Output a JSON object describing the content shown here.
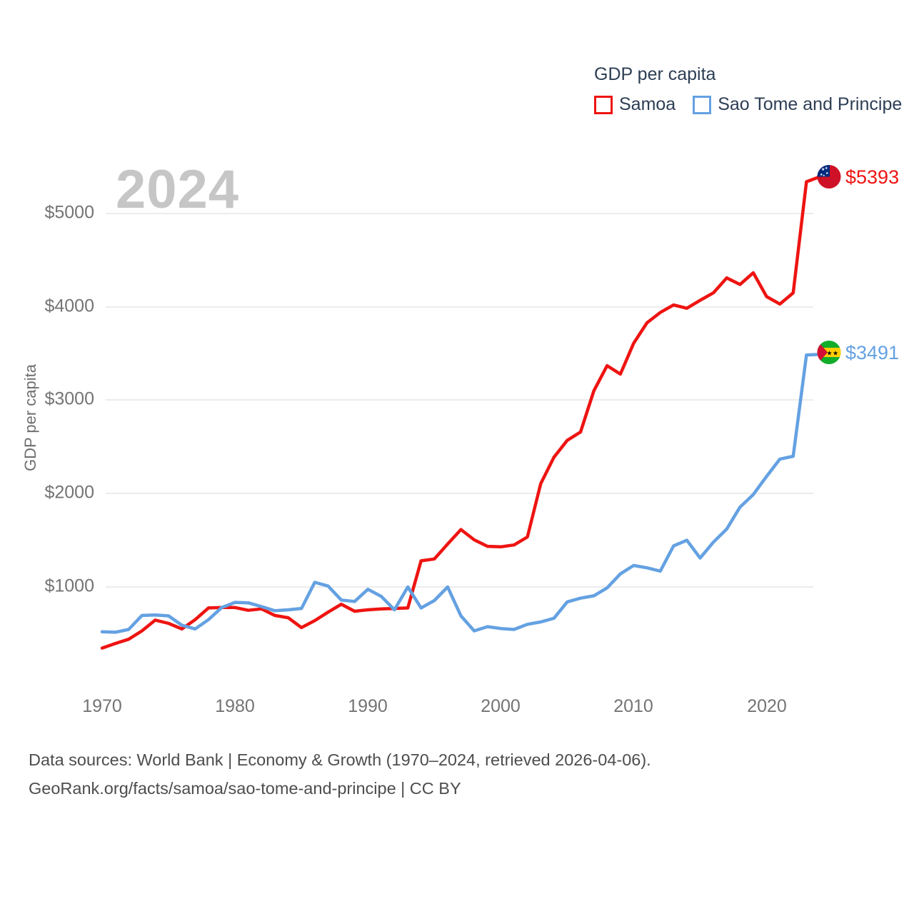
{
  "watermark": "2024",
  "legend": {
    "title": "GDP per capita",
    "items": [
      {
        "label": "Samoa",
        "color": "#ee1411"
      },
      {
        "label": "Sao Tome and Principe",
        "color": "#64a1e2"
      }
    ]
  },
  "y_axis": {
    "title": "GDP per capita",
    "ticks": [
      "$5000",
      "$4000",
      "$3000",
      "$2000",
      "$1000"
    ]
  },
  "x_axis": {
    "ticks": [
      "1970",
      "1980",
      "1990",
      "2000",
      "2010",
      "2020"
    ]
  },
  "end_labels": [
    {
      "text": "$5393",
      "color": "#ee1411",
      "flag": "samoa-flag"
    },
    {
      "text": "$3491",
      "color": "#64a1e2",
      "flag": "sao-tome-and-principe-flag"
    }
  ],
  "source": {
    "line1": "Data sources: World Bank | Economy & Growth (1970–2024, retrieved 2026-04-06).",
    "line2": "GeoRank.org/facts/samoa/sao-tome-and-principe | CC BY"
  },
  "chart_data": {
    "type": "line",
    "title": "GDP per capita",
    "ylabel": "GDP per capita",
    "xlabel": "",
    "ylim": [
      0,
      5600
    ],
    "xlim": [
      1970,
      2024
    ],
    "grid": "horizontal",
    "legend_position": "top-right",
    "x": [
      1970,
      1971,
      1972,
      1973,
      1974,
      1975,
      1976,
      1977,
      1978,
      1979,
      1980,
      1981,
      1982,
      1983,
      1984,
      1985,
      1986,
      1987,
      1988,
      1989,
      1990,
      1991,
      1992,
      1993,
      1994,
      1995,
      1996,
      1997,
      1998,
      1999,
      2000,
      2001,
      2002,
      2003,
      2004,
      2005,
      2006,
      2007,
      2008,
      2009,
      2010,
      2011,
      2012,
      2013,
      2014,
      2015,
      2016,
      2017,
      2018,
      2019,
      2020,
      2021,
      2022,
      2023,
      2024
    ],
    "series": [
      {
        "id": "samoa",
        "name": "Samoa",
        "color": "#ee1411",
        "final_value": 5393,
        "values": [
          345,
          395,
          440,
          530,
          645,
          610,
          550,
          650,
          775,
          780,
          780,
          750,
          765,
          695,
          670,
          565,
          640,
          730,
          815,
          740,
          755,
          765,
          770,
          775,
          1280,
          1300,
          1460,
          1615,
          1505,
          1435,
          1430,
          1450,
          1535,
          2105,
          2390,
          2570,
          2660,
          3100,
          3370,
          3280,
          3610,
          3830,
          3940,
          4020,
          3985,
          4070,
          4150,
          4310,
          4240,
          4365,
          4110,
          4030,
          4150,
          5340,
          5393
        ]
      },
      {
        "id": "sao-tome-and-principe",
        "name": "Sao Tome and Principe",
        "color": "#64a1e2",
        "final_value": 3491,
        "values": [
          520,
          515,
          545,
          695,
          700,
          690,
          590,
          550,
          650,
          780,
          835,
          830,
          790,
          745,
          755,
          770,
          1050,
          1010,
          860,
          845,
          975,
          900,
          755,
          1000,
          775,
          855,
          1000,
          690,
          530,
          575,
          555,
          545,
          600,
          625,
          665,
          840,
          880,
          905,
          990,
          1140,
          1230,
          1205,
          1170,
          1440,
          1500,
          1310,
          1480,
          1620,
          1855,
          1990,
          2185,
          2370,
          2400,
          3485,
          3491
        ]
      }
    ]
  }
}
